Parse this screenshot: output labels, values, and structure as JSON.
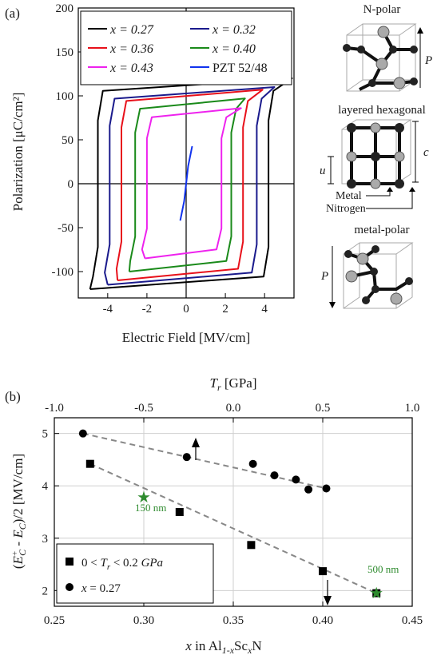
{
  "panel_a": {
    "label": "(a)",
    "ylabel": "Polarization [μC/cm²]",
    "xlabel": "Electric Field [MV/cm]",
    "legend": [
      "x = 0.27",
      "x = 0.32",
      "x = 0.36",
      "x = 0.40",
      "x = 0.43",
      "PZT 52/48"
    ],
    "structures": {
      "n_polar": "N-polar",
      "layered_hexagonal": "layered hexagonal",
      "metal_polar": "metal-polar",
      "label_p": "P",
      "label_c": "c",
      "label_u": "u",
      "metal": "Metal",
      "nitrogen": "Nitrogen"
    }
  },
  "panel_b": {
    "label": "(b)",
    "top_axis_label": "T",
    "top_axis_sub": "r",
    "top_axis_unit": " [GPa]",
    "ylabel": "(E_C⁺ - E_C⁻)/2 [MV/cm]",
    "xlabel": "x in Al1-xScxN",
    "annotations": [
      "150 nm",
      "500 nm"
    ],
    "legend": [
      "0 < T_r < 0.2 GPa",
      "x = 0.27"
    ]
  },
  "chart_data": [
    {
      "type": "line",
      "title": "",
      "xlabel": "Electric Field [MV/cm]",
      "ylabel": "Polarization [μC/cm²]",
      "xlim": [
        -5.5,
        5.5
      ],
      "ylim": [
        -130,
        200
      ],
      "xticks": [
        -4,
        -2,
        0,
        2,
        4
      ],
      "yticks": [
        -100,
        -50,
        0,
        50,
        100,
        150,
        200
      ],
      "legend_position": "top",
      "series": [
        {
          "name": "x = 0.27",
          "color": "#000000",
          "Ec_pos": 4.2,
          "Ec_neg": -4.5,
          "Pmax": 120,
          "Pmin": -120,
          "Emax": 5.4,
          "Emin": -4.9
        },
        {
          "name": "x = 0.32",
          "color": "#1a1a8c",
          "Ec_pos": 3.6,
          "Ec_neg": -3.9,
          "Pmax": 110,
          "Pmin": -115,
          "Emax": 4.5,
          "Emin": -4.0
        },
        {
          "name": "x = 0.36",
          "color": "#e8101a",
          "Ec_pos": 2.9,
          "Ec_neg": -3.3,
          "Pmax": 107,
          "Pmin": -110,
          "Emax": 3.9,
          "Emin": -3.5
        },
        {
          "name": "x = 0.40",
          "color": "#1a8a1a",
          "Ec_pos": 2.3,
          "Ec_neg": -2.6,
          "Pmax": 97,
          "Pmin": -100,
          "Emax": 3.0,
          "Emin": -2.9
        },
        {
          "name": "x = 0.43",
          "color": "#ee22ee",
          "Ec_pos": 1.8,
          "Ec_neg": -2.0,
          "Pmax": 86,
          "Pmin": -85,
          "Emax": 2.8,
          "Emin": -2.1
        },
        {
          "name": "PZT 52/48",
          "color": "#1133ee",
          "x": [
            -0.3,
            -0.1,
            0.0,
            0.1,
            0.3,
            0.1,
            0.0,
            -0.1,
            -0.3
          ],
          "y": [
            -42,
            -20,
            0,
            20,
            42,
            20,
            0,
            -20,
            -42
          ]
        }
      ]
    },
    {
      "type": "scatter",
      "title": "",
      "xlabel": "x in Al1-xScxN",
      "ylabel": "(E_C⁺ - E_C⁻)/2 [MV/cm]",
      "xlim": [
        0.25,
        0.45
      ],
      "ylim": [
        1.7,
        5.3
      ],
      "xticks": [
        0.25,
        0.3,
        0.35,
        0.4,
        0.45
      ],
      "yticks": [
        2,
        3,
        4,
        5
      ],
      "top_axis": {
        "label": "T_r [GPa]",
        "lim": [
          -1.0,
          1.0
        ],
        "ticks": [
          -1.0,
          -0.5,
          0.0,
          0.5,
          1.0
        ]
      },
      "grid": true,
      "legend_position": "bottom-left",
      "series": [
        {
          "name": "0 < T_r < 0.2 GPa",
          "marker": "square",
          "axis": "x",
          "x": [
            0.27,
            0.32,
            0.36,
            0.4,
            0.43
          ],
          "y": [
            4.42,
            3.5,
            2.87,
            2.37,
            1.95
          ]
        },
        {
          "name": "x = 0.27",
          "marker": "circle",
          "axis": "Tr",
          "x": [
            -0.84,
            -0.26,
            0.11,
            0.23,
            0.35,
            0.42,
            0.52
          ],
          "y": [
            5.0,
            4.55,
            4.42,
            4.2,
            4.12,
            3.93,
            3.95
          ]
        },
        {
          "name": "150 nm",
          "marker": "star",
          "color": "#2e8b2e",
          "axis": "x",
          "x": [
            0.3
          ],
          "y": [
            3.78
          ]
        },
        {
          "name": "500 nm",
          "marker": "star",
          "color": "#2e8b2e",
          "axis": "x",
          "x": [
            0.43
          ],
          "y": [
            1.95
          ]
        }
      ]
    }
  ]
}
